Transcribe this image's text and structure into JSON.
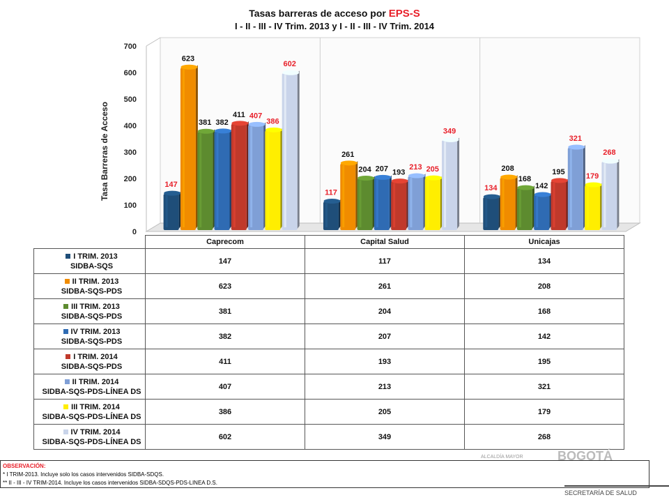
{
  "title": {
    "line1_prefix": "Tasas barreras de acceso por ",
    "line1_highlight": "EPS-S",
    "line2": "I - II - III - IV Trim. 2013 y I - II - III - IV Trim. 2014"
  },
  "chart_data": {
    "type": "bar",
    "title": "Tasas barreras de acceso por EPS-S",
    "subtitle": "I - II - III - IV Trim. 2013 y I - II - III - IV Trim. 2014",
    "ylabel": "Tasa Barreras de Acceso",
    "xlabel": "",
    "ylim": [
      0,
      700
    ],
    "yticks": [
      "0",
      "100",
      "200",
      "300",
      "400",
      "500",
      "600",
      "700"
    ],
    "categories": [
      "Caprecom",
      "Capital Salud",
      "Unicajas"
    ],
    "series": [
      {
        "name": "I TRIM. 2013",
        "name2": "SIDBA-SQS",
        "color": "#1f4e79",
        "label_color": "#e8202a",
        "values": [
          147,
          117,
          134
        ]
      },
      {
        "name": "II TRIM. 2013",
        "name2": "SIDBA-SQS-PDS",
        "color": "#f08c00",
        "label_color": "#111111",
        "values": [
          623,
          261,
          208
        ]
      },
      {
        "name": "III TRIM. 2013",
        "name2": "SIDBA-SQS-PDS",
        "color": "#5d8b2f",
        "label_color": "#111111",
        "values": [
          381,
          204,
          168
        ]
      },
      {
        "name": "IV TRIM. 2013",
        "name2": "SIDBA-SQS-PDS",
        "color": "#2f6bb3",
        "label_color": "#111111",
        "values": [
          382,
          207,
          142
        ]
      },
      {
        "name": "I TRIM. 2014",
        "name2": "SIDBA-SQS-PDS",
        "color": "#c0392b",
        "label_color": "#111111",
        "values": [
          411,
          193,
          195
        ]
      },
      {
        "name": "II TRIM. 2014",
        "name2": "SIDBA-SQS-PDS-LÍNEA DS",
        "color": "#7f9fd6",
        "label_color": "#e8202a",
        "values": [
          407,
          213,
          321
        ]
      },
      {
        "name": "III TRIM. 2014",
        "name2": "SIDBA-SQS-PDS-LÍNEA DS",
        "color": "#ffee00",
        "label_color": "#e8202a",
        "values": [
          386,
          205,
          179
        ]
      },
      {
        "name": "IV TRIM. 2014",
        "name2": "SIDBA-SQS-PDS-LÍNEA DS",
        "color": "#c9d4ea",
        "label_color": "#e8202a",
        "values": [
          602,
          349,
          268
        ]
      }
    ],
    "grid": false,
    "legend": "table-below"
  },
  "observation": {
    "title": "OBSERVACIÓN:",
    "line1": "* I TRIM-2013. Incluye solo los casos intervenidos SIDBA-SDQS.",
    "line2": "** II - III - IV TRIM-2014. Incluye los casos intervenidos SIDBA-SDQS-PDS-LINEA D.S."
  },
  "footer": {
    "text": "SECRETARÍA DE SALUD",
    "bg_text_small": "ALCALDÍA MAYOR",
    "bg_text_large": "BOGOTÁ"
  }
}
